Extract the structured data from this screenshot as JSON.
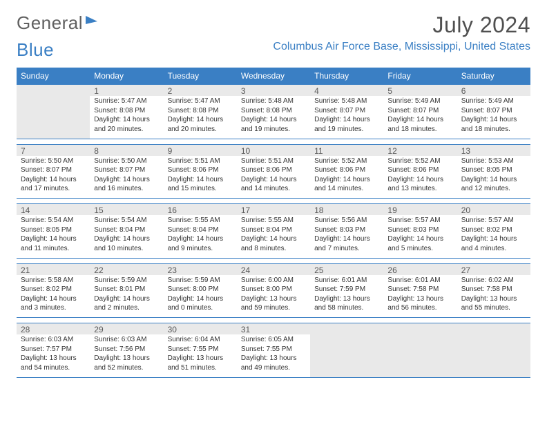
{
  "branding": {
    "logo_text_1": "General",
    "logo_text_2": "Blue",
    "logo_color_1": "#606060",
    "logo_color_2": "#3a7fc4"
  },
  "header": {
    "title": "July 2024",
    "location": "Columbus Air Force Base, Mississippi, United States"
  },
  "styling": {
    "header_bg": "#3a7fc4",
    "header_text": "#ffffff",
    "daynum_bg": "#e9e9e9",
    "border_color": "#3a7fc4",
    "body_text_color": "#333333",
    "title_color": "#505050",
    "location_color": "#3a7fc4",
    "title_fontsize": 32,
    "location_fontsize": 16,
    "cell_fontsize": 10,
    "header_fontsize": 12
  },
  "calendar": {
    "day_headers": [
      "Sunday",
      "Monday",
      "Tuesday",
      "Wednesday",
      "Thursday",
      "Friday",
      "Saturday"
    ],
    "weeks": [
      {
        "nums": [
          "",
          "1",
          "2",
          "3",
          "4",
          "5",
          "6"
        ],
        "cells": [
          "",
          "Sunrise: 5:47 AM\nSunset: 8:08 PM\nDaylight: 14 hours and 20 minutes.",
          "Sunrise: 5:47 AM\nSunset: 8:08 PM\nDaylight: 14 hours and 20 minutes.",
          "Sunrise: 5:48 AM\nSunset: 8:08 PM\nDaylight: 14 hours and 19 minutes.",
          "Sunrise: 5:48 AM\nSunset: 8:07 PM\nDaylight: 14 hours and 19 minutes.",
          "Sunrise: 5:49 AM\nSunset: 8:07 PM\nDaylight: 14 hours and 18 minutes.",
          "Sunrise: 5:49 AM\nSunset: 8:07 PM\nDaylight: 14 hours and 18 minutes."
        ]
      },
      {
        "nums": [
          "7",
          "8",
          "9",
          "10",
          "11",
          "12",
          "13"
        ],
        "cells": [
          "Sunrise: 5:50 AM\nSunset: 8:07 PM\nDaylight: 14 hours and 17 minutes.",
          "Sunrise: 5:50 AM\nSunset: 8:07 PM\nDaylight: 14 hours and 16 minutes.",
          "Sunrise: 5:51 AM\nSunset: 8:06 PM\nDaylight: 14 hours and 15 minutes.",
          "Sunrise: 5:51 AM\nSunset: 8:06 PM\nDaylight: 14 hours and 14 minutes.",
          "Sunrise: 5:52 AM\nSunset: 8:06 PM\nDaylight: 14 hours and 14 minutes.",
          "Sunrise: 5:52 AM\nSunset: 8:06 PM\nDaylight: 14 hours and 13 minutes.",
          "Sunrise: 5:53 AM\nSunset: 8:05 PM\nDaylight: 14 hours and 12 minutes."
        ]
      },
      {
        "nums": [
          "14",
          "15",
          "16",
          "17",
          "18",
          "19",
          "20"
        ],
        "cells": [
          "Sunrise: 5:54 AM\nSunset: 8:05 PM\nDaylight: 14 hours and 11 minutes.",
          "Sunrise: 5:54 AM\nSunset: 8:04 PM\nDaylight: 14 hours and 10 minutes.",
          "Sunrise: 5:55 AM\nSunset: 8:04 PM\nDaylight: 14 hours and 9 minutes.",
          "Sunrise: 5:55 AM\nSunset: 8:04 PM\nDaylight: 14 hours and 8 minutes.",
          "Sunrise: 5:56 AM\nSunset: 8:03 PM\nDaylight: 14 hours and 7 minutes.",
          "Sunrise: 5:57 AM\nSunset: 8:03 PM\nDaylight: 14 hours and 5 minutes.",
          "Sunrise: 5:57 AM\nSunset: 8:02 PM\nDaylight: 14 hours and 4 minutes."
        ]
      },
      {
        "nums": [
          "21",
          "22",
          "23",
          "24",
          "25",
          "26",
          "27"
        ],
        "cells": [
          "Sunrise: 5:58 AM\nSunset: 8:02 PM\nDaylight: 14 hours and 3 minutes.",
          "Sunrise: 5:59 AM\nSunset: 8:01 PM\nDaylight: 14 hours and 2 minutes.",
          "Sunrise: 5:59 AM\nSunset: 8:00 PM\nDaylight: 14 hours and 0 minutes.",
          "Sunrise: 6:00 AM\nSunset: 8:00 PM\nDaylight: 13 hours and 59 minutes.",
          "Sunrise: 6:01 AM\nSunset: 7:59 PM\nDaylight: 13 hours and 58 minutes.",
          "Sunrise: 6:01 AM\nSunset: 7:58 PM\nDaylight: 13 hours and 56 minutes.",
          "Sunrise: 6:02 AM\nSunset: 7:58 PM\nDaylight: 13 hours and 55 minutes."
        ]
      },
      {
        "nums": [
          "28",
          "29",
          "30",
          "31",
          "",
          "",
          ""
        ],
        "cells": [
          "Sunrise: 6:03 AM\nSunset: 7:57 PM\nDaylight: 13 hours and 54 minutes.",
          "Sunrise: 6:03 AM\nSunset: 7:56 PM\nDaylight: 13 hours and 52 minutes.",
          "Sunrise: 6:04 AM\nSunset: 7:55 PM\nDaylight: 13 hours and 51 minutes.",
          "Sunrise: 6:05 AM\nSunset: 7:55 PM\nDaylight: 13 hours and 49 minutes.",
          "",
          "",
          ""
        ]
      }
    ]
  }
}
